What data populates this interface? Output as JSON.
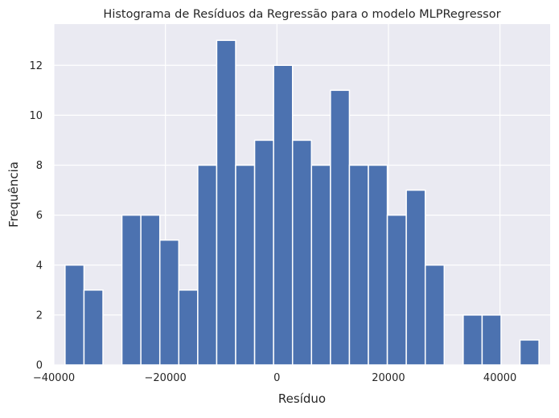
{
  "chart_data": {
    "type": "bar",
    "title": "Histograma de Resíduos da Regressão para o modelo MLPRegressor",
    "xlabel": "Resíduo",
    "ylabel": "Frequência",
    "xlim": [
      -40000,
      49000
    ],
    "ylim": [
      0,
      13.65
    ],
    "grid": true,
    "x_ticks": [
      -40000,
      -20000,
      0,
      20000,
      40000
    ],
    "x_tick_labels": [
      "−40000",
      "−20000",
      "0",
      "20000",
      "40000"
    ],
    "y_ticks": [
      0,
      2,
      4,
      6,
      8,
      10,
      12
    ],
    "y_tick_labels": [
      "0",
      "2",
      "4",
      "6",
      "8",
      "10",
      "12"
    ],
    "bin_start": -38000,
    "bin_width": 3400,
    "counts": [
      4,
      3,
      0,
      6,
      6,
      5,
      3,
      8,
      13,
      8,
      9,
      12,
      9,
      8,
      11,
      8,
      8,
      6,
      7,
      4,
      0,
      2,
      2,
      0,
      1
    ],
    "bar_color": "#4c72b0",
    "background_color": "#eaeaf2",
    "grid_color": "#ffffff"
  }
}
